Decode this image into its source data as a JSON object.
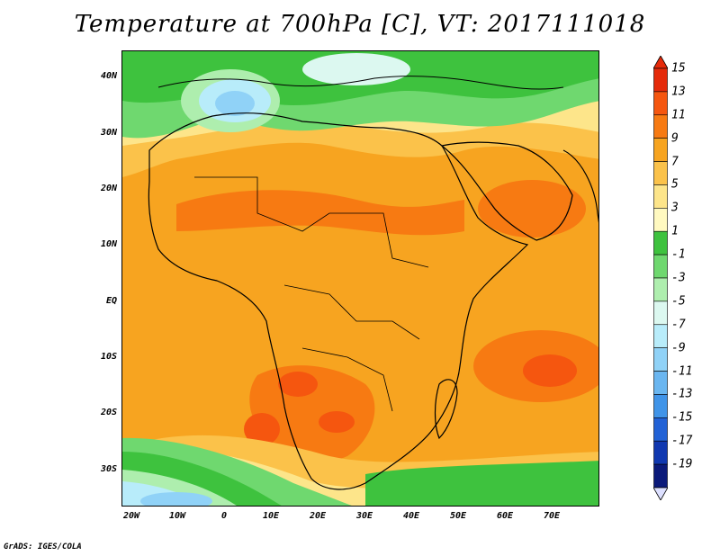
{
  "title": "Temperature at 700hPa [C], VT: 2017111018",
  "footer": "GrADS: IGES/COLA",
  "map": {
    "lat_labels": [
      "40N",
      "30N",
      "20N",
      "10N",
      "EQ",
      "10S",
      "20S",
      "30S"
    ],
    "lon_labels": [
      "20W",
      "10W",
      "0",
      "10E",
      "20E",
      "30E",
      "40E",
      "50E",
      "60E",
      "70E"
    ]
  },
  "colorbar": {
    "labels": [
      "15",
      "13",
      "11",
      "9",
      "7",
      "5",
      "3",
      "1",
      "-1",
      "-3",
      "-5",
      "-7",
      "-9",
      "-11",
      "-13",
      "-15",
      "-17",
      "-19"
    ],
    "colors": [
      "#e52a0a",
      "#f5560f",
      "#f77a12",
      "#f7a420",
      "#fbc24a",
      "#fde58a",
      "#fff9c0",
      "#3ec23e",
      "#6fd86f",
      "#aeeeae",
      "#dcf8f0",
      "#b8ecfa",
      "#90d2f7",
      "#6ab6f0",
      "#4094e8",
      "#2262d6",
      "#1038b0",
      "#0b1a7a"
    ],
    "top_arrow_color": "#e52a0a",
    "bottom_arrow_color": "#dde0ff"
  }
}
